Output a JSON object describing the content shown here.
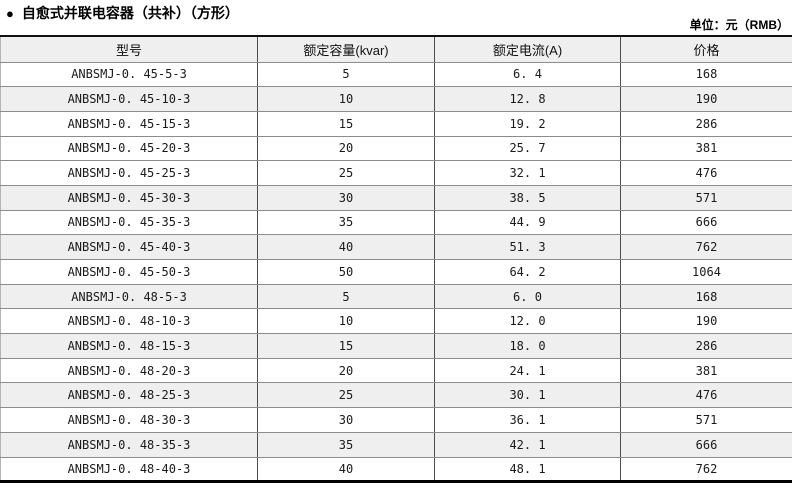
{
  "page": {
    "bullet": "●",
    "title": "自愈式并联电容器（共补）（方形）",
    "unit_label": "单位：元（RMB）"
  },
  "table": {
    "columns": [
      {
        "key": "model",
        "label": "型号"
      },
      {
        "key": "capacity",
        "label": "额定容量(kvar)"
      },
      {
        "key": "current",
        "label": "额定电流(A)"
      },
      {
        "key": "price",
        "label": "价格"
      }
    ],
    "rows": [
      {
        "model": "ANBSMJ-0. 45-5-3",
        "capacity": "5",
        "current": "6. 4",
        "price": "168",
        "shaded": false
      },
      {
        "model": "ANBSMJ-0. 45-10-3",
        "capacity": "10",
        "current": "12. 8",
        "price": "190",
        "shaded": true
      },
      {
        "model": "ANBSMJ-0. 45-15-3",
        "capacity": "15",
        "current": "19. 2",
        "price": "286",
        "shaded": false
      },
      {
        "model": "ANBSMJ-0. 45-20-3",
        "capacity": "20",
        "current": "25. 7",
        "price": "381",
        "shaded": false
      },
      {
        "model": "ANBSMJ-0. 45-25-3",
        "capacity": "25",
        "current": "32. 1",
        "price": "476",
        "shaded": false
      },
      {
        "model": "ANBSMJ-0. 45-30-3",
        "capacity": "30",
        "current": "38. 5",
        "price": "571",
        "shaded": true
      },
      {
        "model": "ANBSMJ-0. 45-35-3",
        "capacity": "35",
        "current": "44. 9",
        "price": "666",
        "shaded": false
      },
      {
        "model": "ANBSMJ-0. 45-40-3",
        "capacity": "40",
        "current": "51. 3",
        "price": "762",
        "shaded": true
      },
      {
        "model": "ANBSMJ-0. 45-50-3",
        "capacity": "50",
        "current": "64. 2",
        "price": "1064",
        "shaded": false
      },
      {
        "model": "ANBSMJ-0. 48-5-3",
        "capacity": "5",
        "current": "6. 0",
        "price": "168",
        "shaded": true
      },
      {
        "model": "ANBSMJ-0. 48-10-3",
        "capacity": "10",
        "current": "12. 0",
        "price": "190",
        "shaded": false
      },
      {
        "model": "ANBSMJ-0. 48-15-3",
        "capacity": "15",
        "current": "18. 0",
        "price": "286",
        "shaded": true
      },
      {
        "model": "ANBSMJ-0. 48-20-3",
        "capacity": "20",
        "current": "24. 1",
        "price": "381",
        "shaded": false
      },
      {
        "model": "ANBSMJ-0. 48-25-3",
        "capacity": "25",
        "current": "30. 1",
        "price": "476",
        "shaded": true
      },
      {
        "model": "ANBSMJ-0. 48-30-3",
        "capacity": "30",
        "current": "36. 1",
        "price": "571",
        "shaded": false
      },
      {
        "model": "ANBSMJ-0. 48-35-3",
        "capacity": "35",
        "current": "42. 1",
        "price": "666",
        "shaded": true
      },
      {
        "model": "ANBSMJ-0. 48-40-3",
        "capacity": "40",
        "current": "48. 1",
        "price": "762",
        "shaded": false
      }
    ]
  },
  "colors": {
    "header_bg": "#efefef",
    "row_shade": "#efefef",
    "grid_line": "#8c8c8c",
    "column_line": "#4d4d4d",
    "top_border": "#111111",
    "bottom_border": "#000000"
  }
}
